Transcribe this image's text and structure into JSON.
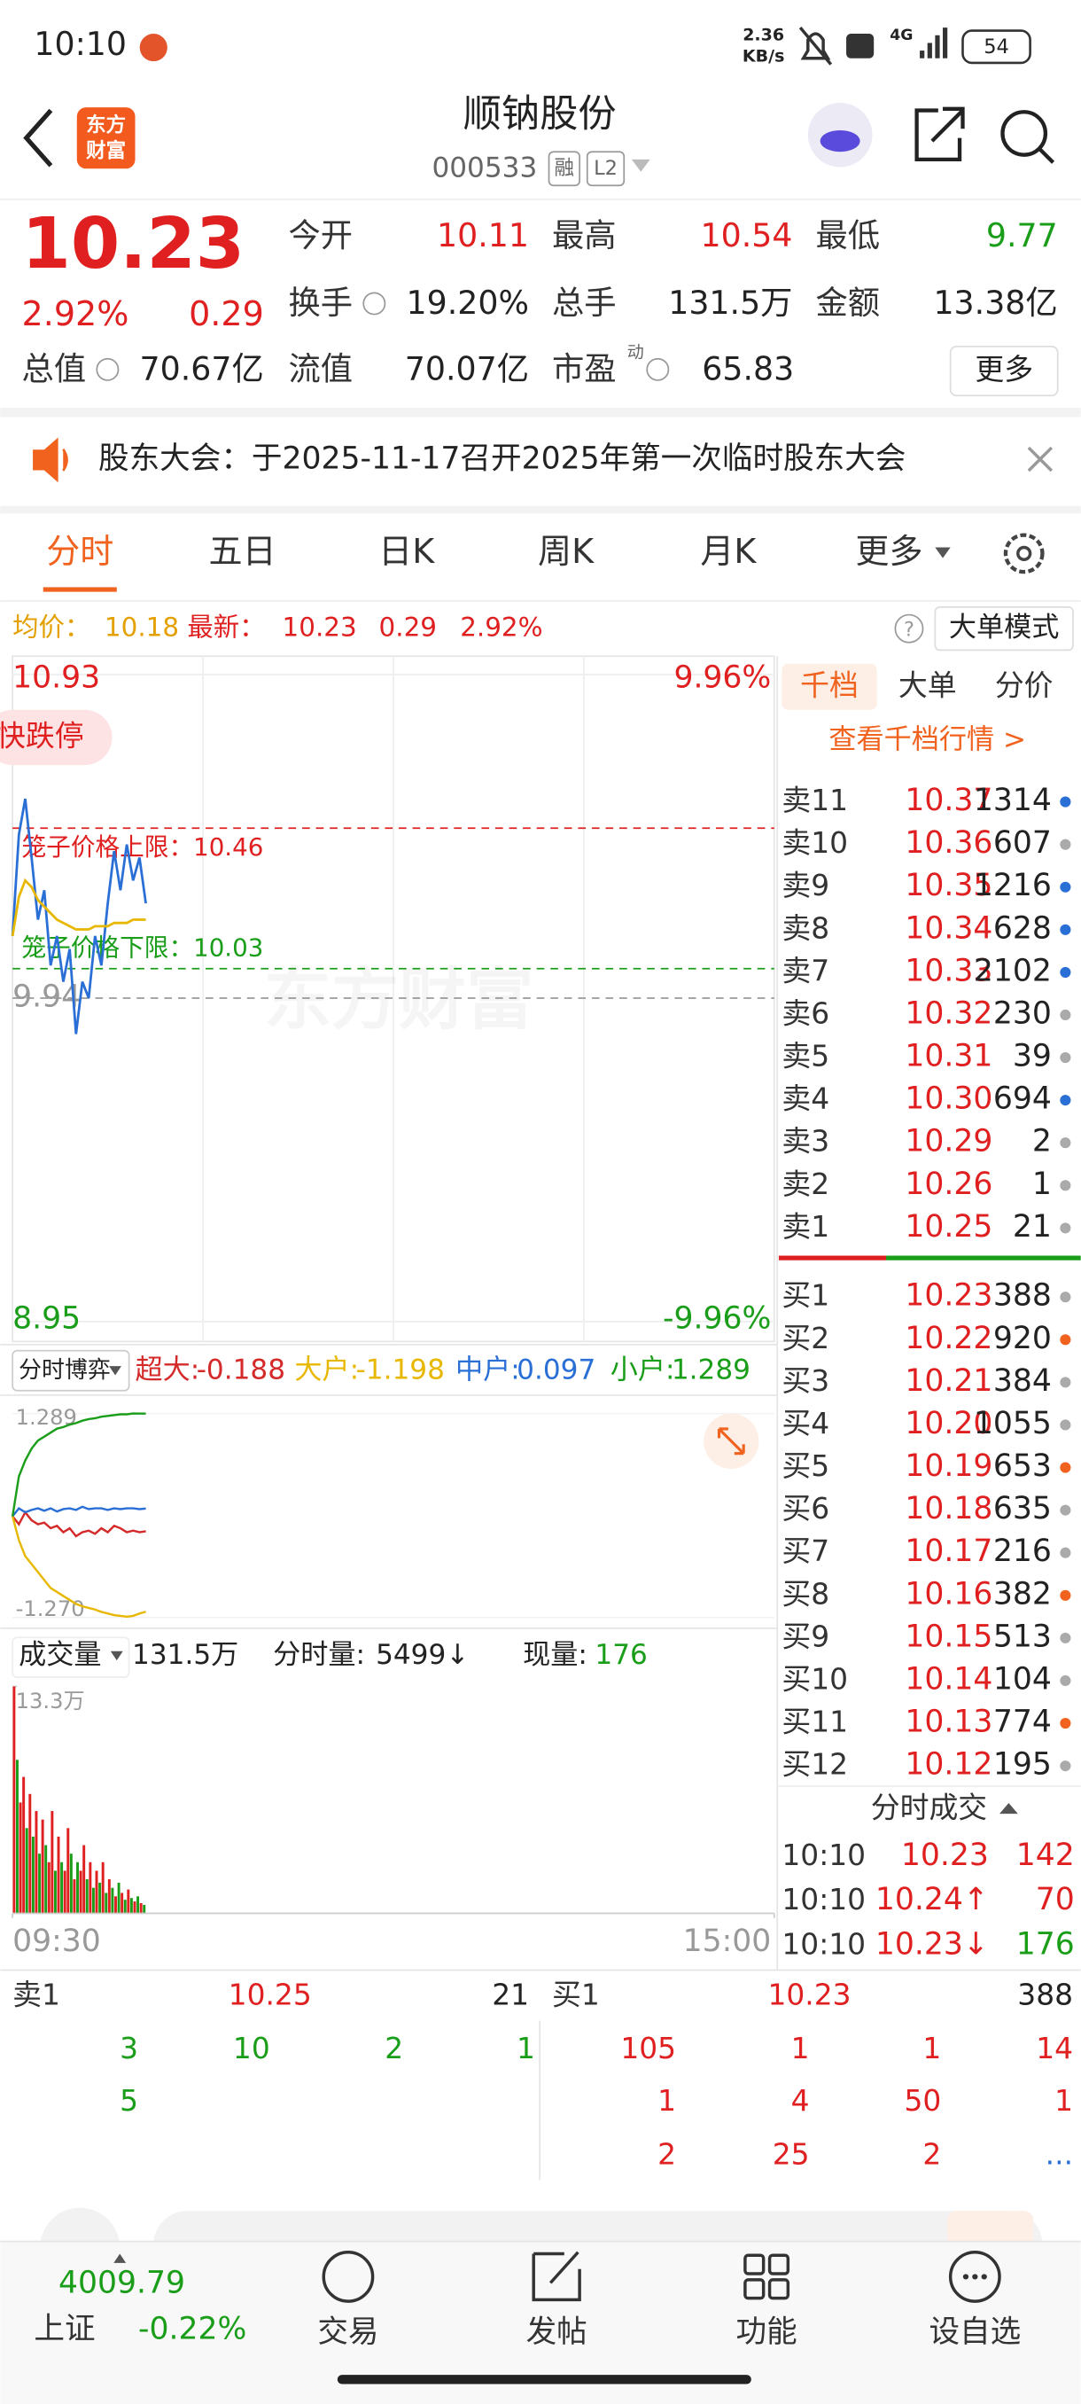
{
  "status_bar": {
    "time": "10:10",
    "speed": "2.36",
    "speed_unit": "KB/s",
    "network": "4G",
    "battery": "54"
  },
  "header": {
    "logo": [
      "东方",
      "财富"
    ],
    "title": "顺钠股份",
    "code": "000533",
    "badges": [
      "融",
      "L2"
    ]
  },
  "quote": {
    "price": "10.23",
    "change_pct": "2.92%",
    "change": "0.29",
    "fields": [
      {
        "label": "今开",
        "value": "10.11",
        "color": "#e02020"
      },
      {
        "label": "最高",
        "value": "10.54",
        "color": "#e02020"
      },
      {
        "label": "最低",
        "value": "9.77",
        "color": "#1a9e1a"
      },
      {
        "label": "换手",
        "value": "19.20%"
      },
      {
        "label": "总手",
        "value": "131.5万"
      },
      {
        "label": "金额",
        "value": "13.38亿"
      },
      {
        "label": "总值",
        "value": "70.67亿"
      },
      {
        "label": "流值",
        "value": "70.07亿"
      },
      {
        "label": "市盈",
        "value": "65.83",
        "superscript": "动"
      }
    ],
    "more": "更多"
  },
  "notice": {
    "text": "股东大会：于2025-11-17召开2025年第一次临时股东大会"
  },
  "tabs": {
    "items": [
      "分时",
      "五日",
      "日K",
      "周K",
      "月K",
      "更多"
    ],
    "active": 0
  },
  "info_bar": {
    "avg_label": "均价：",
    "avg": "10.18",
    "latest_label": "最新：",
    "latest": "10.23",
    "change": "0.29",
    "change_pct": "2.92%",
    "help": "?",
    "mode": "大单模式"
  },
  "chart_data": [
    {
      "type": "line",
      "x": [
        0,
        2,
        4,
        6,
        8,
        10,
        12,
        14,
        16,
        18,
        20,
        22,
        24,
        26,
        28,
        30,
        32,
        34,
        36,
        38,
        40,
        42
      ],
      "xlim": [
        0,
        240
      ],
      "ylim": [
        8.95,
        10.93
      ],
      "yticks": [
        8.95,
        9.94,
        10.93
      ],
      "y2lim": [
        -9.96,
        9.96
      ],
      "y2ticks": [
        {
          "value": -9.96,
          "label": "-9.96%"
        },
        {
          "value": 9.96,
          "label": "9.96%"
        }
      ],
      "series": [
        {
          "color": "#2a6fd6",
          "values": [
            10.13,
            10.44,
            10.55,
            10.37,
            10.18,
            10.27,
            10.04,
            10.13,
            9.99,
            10.09,
            9.83,
            9.99,
            9.94,
            10.13,
            10.04,
            10.23,
            10.39,
            10.27,
            10.41,
            10.3,
            10.37,
            10.23
          ]
        },
        {
          "color": "#e8b800",
          "values": [
            10.13,
            10.25,
            10.3,
            10.28,
            10.24,
            10.22,
            10.2,
            10.18,
            10.17,
            10.16,
            10.15,
            10.15,
            10.15,
            10.16,
            10.16,
            10.16,
            10.17,
            10.17,
            10.17,
            10.18,
            10.18,
            10.18
          ]
        }
      ],
      "annotations": [
        {
          "text": "笼子价格上限：10.46",
          "value": 10.46,
          "color": "#e02020"
        },
        {
          "text": "笼子价格下限：10.03",
          "value": 10.03,
          "color": "#1a9e1a"
        }
      ],
      "tag": "快跌停",
      "watermark": "东方财富",
      "grid": true
    },
    {
      "type": "line",
      "title": "分时博弈",
      "x": [
        0,
        2,
        4,
        6,
        8,
        10,
        12,
        14,
        16,
        18,
        20,
        22,
        24,
        26,
        28,
        30,
        32,
        34,
        36,
        38,
        40,
        42
      ],
      "xlim": [
        0,
        240
      ],
      "ylim": [
        -1.27,
        1.289
      ],
      "yticks": [
        {
          "value": -1.27,
          "label": "-1.270"
        },
        1.289
      ],
      "series": [
        {
          "name": "超大:",
          "total": "-0.188",
          "color": "#d42a2a",
          "values": [
            0,
            -0.1,
            0.05,
            -0.05,
            -0.1,
            -0.08,
            -0.15,
            -0.12,
            -0.2,
            -0.15,
            -0.25,
            -0.2,
            -0.18,
            -0.22,
            -0.15,
            -0.2,
            -0.12,
            -0.15,
            -0.2,
            -0.18,
            -0.2,
            -0.188
          ]
        },
        {
          "name": "大户:",
          "total": "-1.198",
          "color": "#e8b800",
          "values": [
            0,
            -0.3,
            -0.5,
            -0.6,
            -0.7,
            -0.8,
            -0.9,
            -0.95,
            -1.0,
            -1.05,
            -1.1,
            -1.13,
            -1.15,
            -1.17,
            -1.2,
            -1.22,
            -1.24,
            -1.25,
            -1.26,
            -1.25,
            -1.22,
            -1.198
          ]
        },
        {
          "name": "中户:",
          "total": "0.097",
          "color": "#2a6fd6",
          "values": [
            0,
            0.1,
            0.05,
            0.08,
            0.1,
            0.07,
            0.1,
            0.06,
            0.09,
            0.1,
            0.08,
            0.12,
            0.09,
            0.1,
            0.1,
            0.08,
            0.1,
            0.09,
            0.1,
            0.1,
            0.09,
            0.097
          ]
        },
        {
          "name": "小户:",
          "total": "1.289",
          "color": "#1a9e1a",
          "values": [
            0,
            0.5,
            0.7,
            0.85,
            0.95,
            1.0,
            1.05,
            1.1,
            1.12,
            1.15,
            1.17,
            1.2,
            1.22,
            1.23,
            1.25,
            1.26,
            1.27,
            1.28,
            1.28,
            1.29,
            1.289,
            1.289
          ]
        }
      ]
    },
    {
      "type": "bar",
      "title": "成交量",
      "total": "131.5万",
      "minute_volume": {
        "label": "分时量:",
        "value": "5499↓"
      },
      "current_volume": {
        "label": "现量:",
        "value": "176"
      },
      "x": [
        0,
        1,
        2,
        3,
        4,
        5,
        6,
        7,
        8,
        9,
        10,
        11,
        12,
        13,
        14,
        15,
        16,
        17,
        18,
        19,
        20,
        21,
        22,
        23,
        24,
        25,
        26,
        27,
        28,
        29,
        30,
        31,
        32,
        33,
        34,
        35,
        36,
        37,
        38,
        39,
        40,
        41
      ],
      "xlim": [
        0,
        240
      ],
      "values": [
        13.3,
        9,
        6.5,
        8,
        5,
        7,
        4.5,
        6,
        3.5,
        5.5,
        4,
        3,
        6,
        2.5,
        4.5,
        3,
        2.5,
        5,
        3.5,
        2,
        3,
        2.5,
        4,
        2,
        3,
        1.5,
        2.5,
        1.8,
        3,
        1.2,
        2,
        1.5,
        1,
        1.8,
        1.2,
        0.8,
        1.4,
        0.9,
        0.7,
        1,
        0.6,
        0.5
      ],
      "colors": [
        "#e02020",
        "#1a9e1a",
        "#e02020",
        "#e02020",
        "#1a9e1a",
        "#e02020",
        "#1a9e1a",
        "#e02020",
        "#1a9e1a",
        "#e02020",
        "#1a9e1a",
        "#e02020",
        "#e02020",
        "#1a9e1a",
        "#e02020",
        "#1a9e1a",
        "#e02020",
        "#e02020",
        "#1a9e1a",
        "#e02020",
        "#1a9e1a",
        "#e02020",
        "#e02020",
        "#1a9e1a",
        "#e02020",
        "#1a9e1a",
        "#e02020",
        "#1a9e1a",
        "#e02020",
        "#1a9e1a",
        "#e02020",
        "#1a9e1a",
        "#e02020",
        "#1a9e1a",
        "#e02020",
        "#1a9e1a",
        "#e02020",
        "#1a9e1a",
        "#e02020",
        "#1a9e1a",
        "#e02020",
        "#1a9e1a"
      ],
      "ylim": [
        0,
        13.3
      ],
      "yticks": [
        {
          "value": 13.3,
          "label": "13.3万"
        }
      ],
      "xticks": [
        {
          "value": 0,
          "label": "09:30"
        },
        {
          "value": 240,
          "label": "15:00"
        }
      ]
    }
  ],
  "order_book": {
    "tabs": [
      "千档",
      "大单",
      "分价"
    ],
    "active": 0,
    "link": "查看千档行情 >",
    "asks": [
      {
        "label": "卖11",
        "price": "10.37",
        "volume": "1314",
        "dot": "#2a6fd6"
      },
      {
        "label": "卖10",
        "price": "10.36",
        "volume": "607",
        "dot": "#aaaaaa"
      },
      {
        "label": "卖9",
        "price": "10.35",
        "volume": "1216",
        "dot": "#2a6fd6"
      },
      {
        "label": "卖8",
        "price": "10.34",
        "volume": "628",
        "dot": "#2a6fd6"
      },
      {
        "label": "卖7",
        "price": "10.33",
        "volume": "2102",
        "dot": "#2a6fd6"
      },
      {
        "label": "卖6",
        "price": "10.32",
        "volume": "230",
        "dot": "#aaaaaa"
      },
      {
        "label": "卖5",
        "price": "10.31",
        "volume": "39",
        "dot": "#aaaaaa"
      },
      {
        "label": "卖4",
        "price": "10.30",
        "volume": "694",
        "dot": "#2a6fd6"
      },
      {
        "label": "卖3",
        "price": "10.29",
        "volume": "2",
        "dot": "#aaaaaa"
      },
      {
        "label": "卖2",
        "price": "10.26",
        "volume": "1",
        "dot": "#aaaaaa"
      },
      {
        "label": "卖1",
        "price": "10.25",
        "volume": "21",
        "dot": "#aaaaaa"
      }
    ],
    "bids": [
      {
        "label": "买1",
        "price": "10.23",
        "volume": "388",
        "dot": "#aaaaaa"
      },
      {
        "label": "买2",
        "price": "10.22",
        "volume": "920",
        "dot": "#f0621e"
      },
      {
        "label": "买3",
        "price": "10.21",
        "volume": "384",
        "dot": "#aaaaaa"
      },
      {
        "label": "买4",
        "price": "10.20",
        "volume": "1055",
        "dot": "#aaaaaa"
      },
      {
        "label": "买5",
        "price": "10.19",
        "volume": "653",
        "dot": "#f0621e"
      },
      {
        "label": "买6",
        "price": "10.18",
        "volume": "635",
        "dot": "#aaaaaa"
      },
      {
        "label": "买7",
        "price": "10.17",
        "volume": "216",
        "dot": "#aaaaaa"
      },
      {
        "label": "买8",
        "price": "10.16",
        "volume": "382",
        "dot": "#f0621e"
      },
      {
        "label": "买9",
        "price": "10.15",
        "volume": "513",
        "dot": "#aaaaaa"
      },
      {
        "label": "买10",
        "price": "10.14",
        "volume": "104",
        "dot": "#aaaaaa"
      },
      {
        "label": "买11",
        "price": "10.13",
        "volume": "774",
        "dot": "#f0621e"
      },
      {
        "label": "买12",
        "price": "10.12",
        "volume": "195",
        "dot": "#aaaaaa"
      }
    ],
    "trades_title": "分时成交",
    "trades": [
      {
        "time": "10:10",
        "price": "10.23",
        "volume": "142",
        "volume_color": "#e02020"
      },
      {
        "time": "10:10",
        "price": "10.24↑",
        "volume": "70",
        "volume_color": "#e02020"
      },
      {
        "time": "10:10",
        "price": "10.23↓",
        "volume": "176",
        "volume_color": "#1a9e1a"
      }
    ]
  },
  "depth": {
    "ask": {
      "label": "卖1",
      "price": "10.25",
      "volume": "21"
    },
    "bid": {
      "label": "买1",
      "price": "10.23",
      "volume": "388"
    },
    "ask_orders": [
      [
        "3",
        "10",
        "2",
        "1"
      ],
      [
        "5"
      ]
    ],
    "bid_orders": [
      [
        "105",
        "1",
        "1",
        "14"
      ],
      [
        "1",
        "4",
        "50",
        "1"
      ],
      [
        "2",
        "25",
        "2",
        "..."
      ]
    ]
  },
  "bottom_nav": {
    "index_value": "4009.79",
    "index_name": "上证",
    "index_change": "-0.22%",
    "items": [
      "交易",
      "发帖",
      "功能",
      "设自选"
    ]
  }
}
